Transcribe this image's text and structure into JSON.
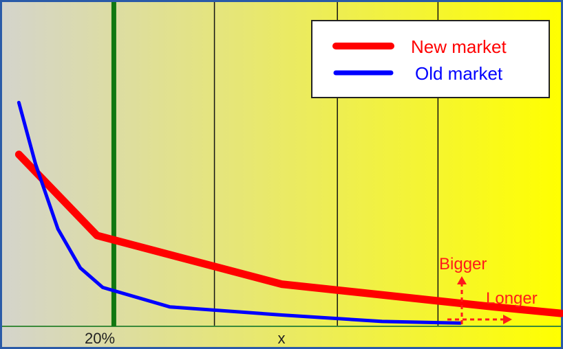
{
  "chart_data": {
    "type": "line",
    "x_tick_labels": [
      "20%",
      "x"
    ],
    "series": [
      {
        "name": "New market",
        "color": "#ff0000",
        "points": [
          [
            0.03,
            0.53
          ],
          [
            0.17,
            0.28
          ],
          [
            0.5,
            0.13
          ],
          [
            0.88,
            0.06
          ],
          [
            1.0,
            0.04
          ]
        ]
      },
      {
        "name": "Old market",
        "color": "#0000ff",
        "points": [
          [
            0.03,
            0.69
          ],
          [
            0.06,
            0.5
          ],
          [
            0.1,
            0.3
          ],
          [
            0.14,
            0.18
          ],
          [
            0.18,
            0.12
          ],
          [
            0.3,
            0.06
          ],
          [
            0.5,
            0.035
          ],
          [
            0.68,
            0.015
          ],
          [
            0.82,
            0.01
          ]
        ]
      }
    ],
    "highlight_line": {
      "x": 0.2,
      "color": "#117711"
    },
    "grid_verticals": [
      0.38,
      0.6,
      0.78
    ],
    "background_gradient": [
      "#d4d4cc",
      "#ffff00"
    ],
    "legend": {
      "position": "top-right"
    },
    "annotations": [
      {
        "text": "Bigger",
        "color": "#ff1a1a"
      },
      {
        "text": "Longer",
        "color": "#ff1a1a"
      }
    ]
  }
}
